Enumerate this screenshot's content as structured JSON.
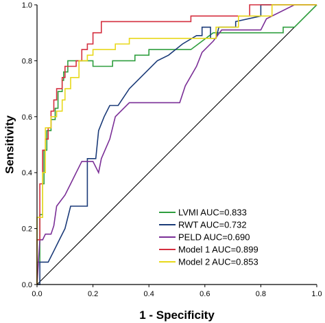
{
  "chart_data": {
    "type": "line",
    "xlabel": "1 - Specificity",
    "ylabel": "Sensitivity",
    "xlim": [
      0,
      1
    ],
    "ylim": [
      0,
      1
    ],
    "xticks": [
      "0.0",
      "0.2",
      "0.4",
      "0.6",
      "0.8",
      "1.0"
    ],
    "yticks": [
      "0.0",
      "0.2",
      "0.4",
      "0.6",
      "0.8",
      "1.0"
    ],
    "grid": false,
    "legend_position": "bottom-right",
    "reference_line": [
      [
        0,
        0
      ],
      [
        1,
        1
      ]
    ],
    "series": [
      {
        "name": "LVMI AUC=0.833",
        "color": "#2e9e3e",
        "points": [
          [
            0,
            0
          ],
          [
            0,
            0.08
          ],
          [
            0.01,
            0.08
          ],
          [
            0.01,
            0.25
          ],
          [
            0.02,
            0.25
          ],
          [
            0.02,
            0.36
          ],
          [
            0.025,
            0.36
          ],
          [
            0.025,
            0.48
          ],
          [
            0.035,
            0.48
          ],
          [
            0.035,
            0.55
          ],
          [
            0.05,
            0.55
          ],
          [
            0.05,
            0.59
          ],
          [
            0.065,
            0.59
          ],
          [
            0.065,
            0.63
          ],
          [
            0.075,
            0.63
          ],
          [
            0.075,
            0.69
          ],
          [
            0.09,
            0.69
          ],
          [
            0.09,
            0.73
          ],
          [
            0.095,
            0.73
          ],
          [
            0.095,
            0.76
          ],
          [
            0.11,
            0.76
          ],
          [
            0.11,
            0.8
          ],
          [
            0.2,
            0.8
          ],
          [
            0.2,
            0.78
          ],
          [
            0.27,
            0.78
          ],
          [
            0.27,
            0.8
          ],
          [
            0.35,
            0.8
          ],
          [
            0.35,
            0.82
          ],
          [
            0.4,
            0.82
          ],
          [
            0.4,
            0.84
          ],
          [
            0.5,
            0.84
          ],
          [
            0.55,
            0.84
          ],
          [
            0.63,
            0.9
          ],
          [
            0.75,
            0.9
          ],
          [
            0.88,
            0.9
          ],
          [
            0.88,
            0.92
          ],
          [
            0.92,
            0.92
          ],
          [
            1,
            1
          ]
        ]
      },
      {
        "name": "RWT AUC=0.732",
        "color": "#1a3a78",
        "points": [
          [
            0,
            0
          ],
          [
            0.01,
            0
          ],
          [
            0.01,
            0.08
          ],
          [
            0.04,
            0.08
          ],
          [
            0.06,
            0.12
          ],
          [
            0.08,
            0.16
          ],
          [
            0.1,
            0.2
          ],
          [
            0.12,
            0.28
          ],
          [
            0.18,
            0.28
          ],
          [
            0.18,
            0.45
          ],
          [
            0.21,
            0.45
          ],
          [
            0.22,
            0.55
          ],
          [
            0.24,
            0.6
          ],
          [
            0.26,
            0.64
          ],
          [
            0.29,
            0.64
          ],
          [
            0.33,
            0.7
          ],
          [
            0.4,
            0.77
          ],
          [
            0.43,
            0.8
          ],
          [
            0.47,
            0.82
          ],
          [
            0.52,
            0.86
          ],
          [
            0.57,
            0.89
          ],
          [
            0.59,
            0.89
          ],
          [
            0.59,
            0.92
          ],
          [
            0.62,
            0.92
          ],
          [
            0.62,
            0.88
          ],
          [
            0.64,
            0.88
          ],
          [
            0.65,
            0.92
          ],
          [
            0.71,
            0.92
          ],
          [
            0.71,
            0.94
          ],
          [
            0.8,
            0.96
          ],
          [
            0.8,
            1
          ],
          [
            1,
            1
          ]
        ]
      },
      {
        "name": "PELD AUC=0.690",
        "color": "#7a2e96",
        "points": [
          [
            0,
            0
          ],
          [
            0.01,
            0.16
          ],
          [
            0.02,
            0.16
          ],
          [
            0.03,
            0.18
          ],
          [
            0.05,
            0.18
          ],
          [
            0.06,
            0.21
          ],
          [
            0.07,
            0.28
          ],
          [
            0.1,
            0.32
          ],
          [
            0.12,
            0.36
          ],
          [
            0.14,
            0.4
          ],
          [
            0.16,
            0.44
          ],
          [
            0.2,
            0.44
          ],
          [
            0.22,
            0.4
          ],
          [
            0.23,
            0.45
          ],
          [
            0.26,
            0.52
          ],
          [
            0.28,
            0.6
          ],
          [
            0.29,
            0.61
          ],
          [
            0.33,
            0.65
          ],
          [
            0.51,
            0.65
          ],
          [
            0.53,
            0.71
          ],
          [
            0.57,
            0.78
          ],
          [
            0.59,
            0.83
          ],
          [
            0.63,
            0.87
          ],
          [
            0.66,
            0.91
          ],
          [
            0.8,
            0.91
          ],
          [
            0.82,
            0.95
          ],
          [
            0.92,
            1
          ],
          [
            1,
            1
          ]
        ]
      },
      {
        "name": "Model 1 AUC=0.899",
        "color": "#d42e3e",
        "points": [
          [
            0,
            0
          ],
          [
            0,
            0.16
          ],
          [
            0.01,
            0.16
          ],
          [
            0.01,
            0.36
          ],
          [
            0.02,
            0.36
          ],
          [
            0.02,
            0.48
          ],
          [
            0.03,
            0.48
          ],
          [
            0.03,
            0.52
          ],
          [
            0.04,
            0.52
          ],
          [
            0.04,
            0.56
          ],
          [
            0.05,
            0.56
          ],
          [
            0.05,
            0.62
          ],
          [
            0.06,
            0.62
          ],
          [
            0.06,
            0.66
          ],
          [
            0.07,
            0.66
          ],
          [
            0.07,
            0.7
          ],
          [
            0.09,
            0.7
          ],
          [
            0.09,
            0.74
          ],
          [
            0.1,
            0.74
          ],
          [
            0.1,
            0.78
          ],
          [
            0.14,
            0.78
          ],
          [
            0.14,
            0.8
          ],
          [
            0.16,
            0.8
          ],
          [
            0.16,
            0.84
          ],
          [
            0.18,
            0.84
          ],
          [
            0.18,
            0.86
          ],
          [
            0.2,
            0.86
          ],
          [
            0.2,
            0.9
          ],
          [
            0.23,
            0.9
          ],
          [
            0.23,
            0.94
          ],
          [
            0.55,
            0.94
          ],
          [
            0.55,
            0.96
          ],
          [
            0.76,
            0.96
          ],
          [
            0.76,
            1
          ],
          [
            1,
            1
          ]
        ]
      },
      {
        "name": "Model 2 AUC=0.853",
        "color": "#e8d81a",
        "points": [
          [
            0,
            0
          ],
          [
            0,
            0.24
          ],
          [
            0.02,
            0.24
          ],
          [
            0.02,
            0.4
          ],
          [
            0.03,
            0.4
          ],
          [
            0.03,
            0.56
          ],
          [
            0.05,
            0.56
          ],
          [
            0.05,
            0.6
          ],
          [
            0.07,
            0.6
          ],
          [
            0.07,
            0.62
          ],
          [
            0.09,
            0.62
          ],
          [
            0.09,
            0.66
          ],
          [
            0.1,
            0.66
          ],
          [
            0.1,
            0.7
          ],
          [
            0.12,
            0.7
          ],
          [
            0.12,
            0.74
          ],
          [
            0.15,
            0.74
          ],
          [
            0.15,
            0.8
          ],
          [
            0.18,
            0.8
          ],
          [
            0.18,
            0.82
          ],
          [
            0.2,
            0.82
          ],
          [
            0.2,
            0.84
          ],
          [
            0.28,
            0.84
          ],
          [
            0.28,
            0.86
          ],
          [
            0.33,
            0.86
          ],
          [
            0.33,
            0.88
          ],
          [
            0.64,
            0.88
          ],
          [
            0.64,
            0.92
          ],
          [
            0.72,
            0.92
          ],
          [
            0.72,
            0.96
          ],
          [
            0.84,
            0.96
          ],
          [
            0.84,
            1
          ],
          [
            1,
            1
          ]
        ]
      }
    ]
  }
}
